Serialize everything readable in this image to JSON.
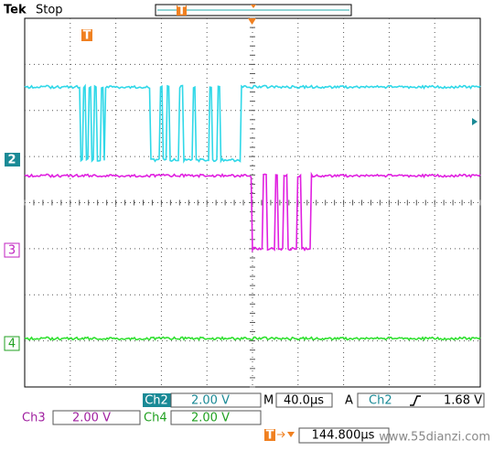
{
  "header": {
    "brand": "Tek",
    "status": "Stop"
  },
  "markers": {
    "trigger_top": "T",
    "trigger_screen": "T",
    "ch2": "2",
    "ch3": "3",
    "ch4": "4"
  },
  "readouts": {
    "row1": {
      "ch2_label": "Ch2",
      "ch2_scale": "2.00 V",
      "time_label": "M",
      "time_scale": "40.0µs",
      "acq_label": "A",
      "trig_source": "Ch2",
      "trig_level": "1.68 V"
    },
    "row2": {
      "ch3_label": "Ch3",
      "ch3_scale": "2.00 V",
      "ch4_label": "Ch4",
      "ch4_scale": "2.00 V"
    },
    "row3": {
      "trig_marker": "T",
      "trig_position": "144.800µs",
      "watermark": "www.55dianzi.com"
    }
  }
}
